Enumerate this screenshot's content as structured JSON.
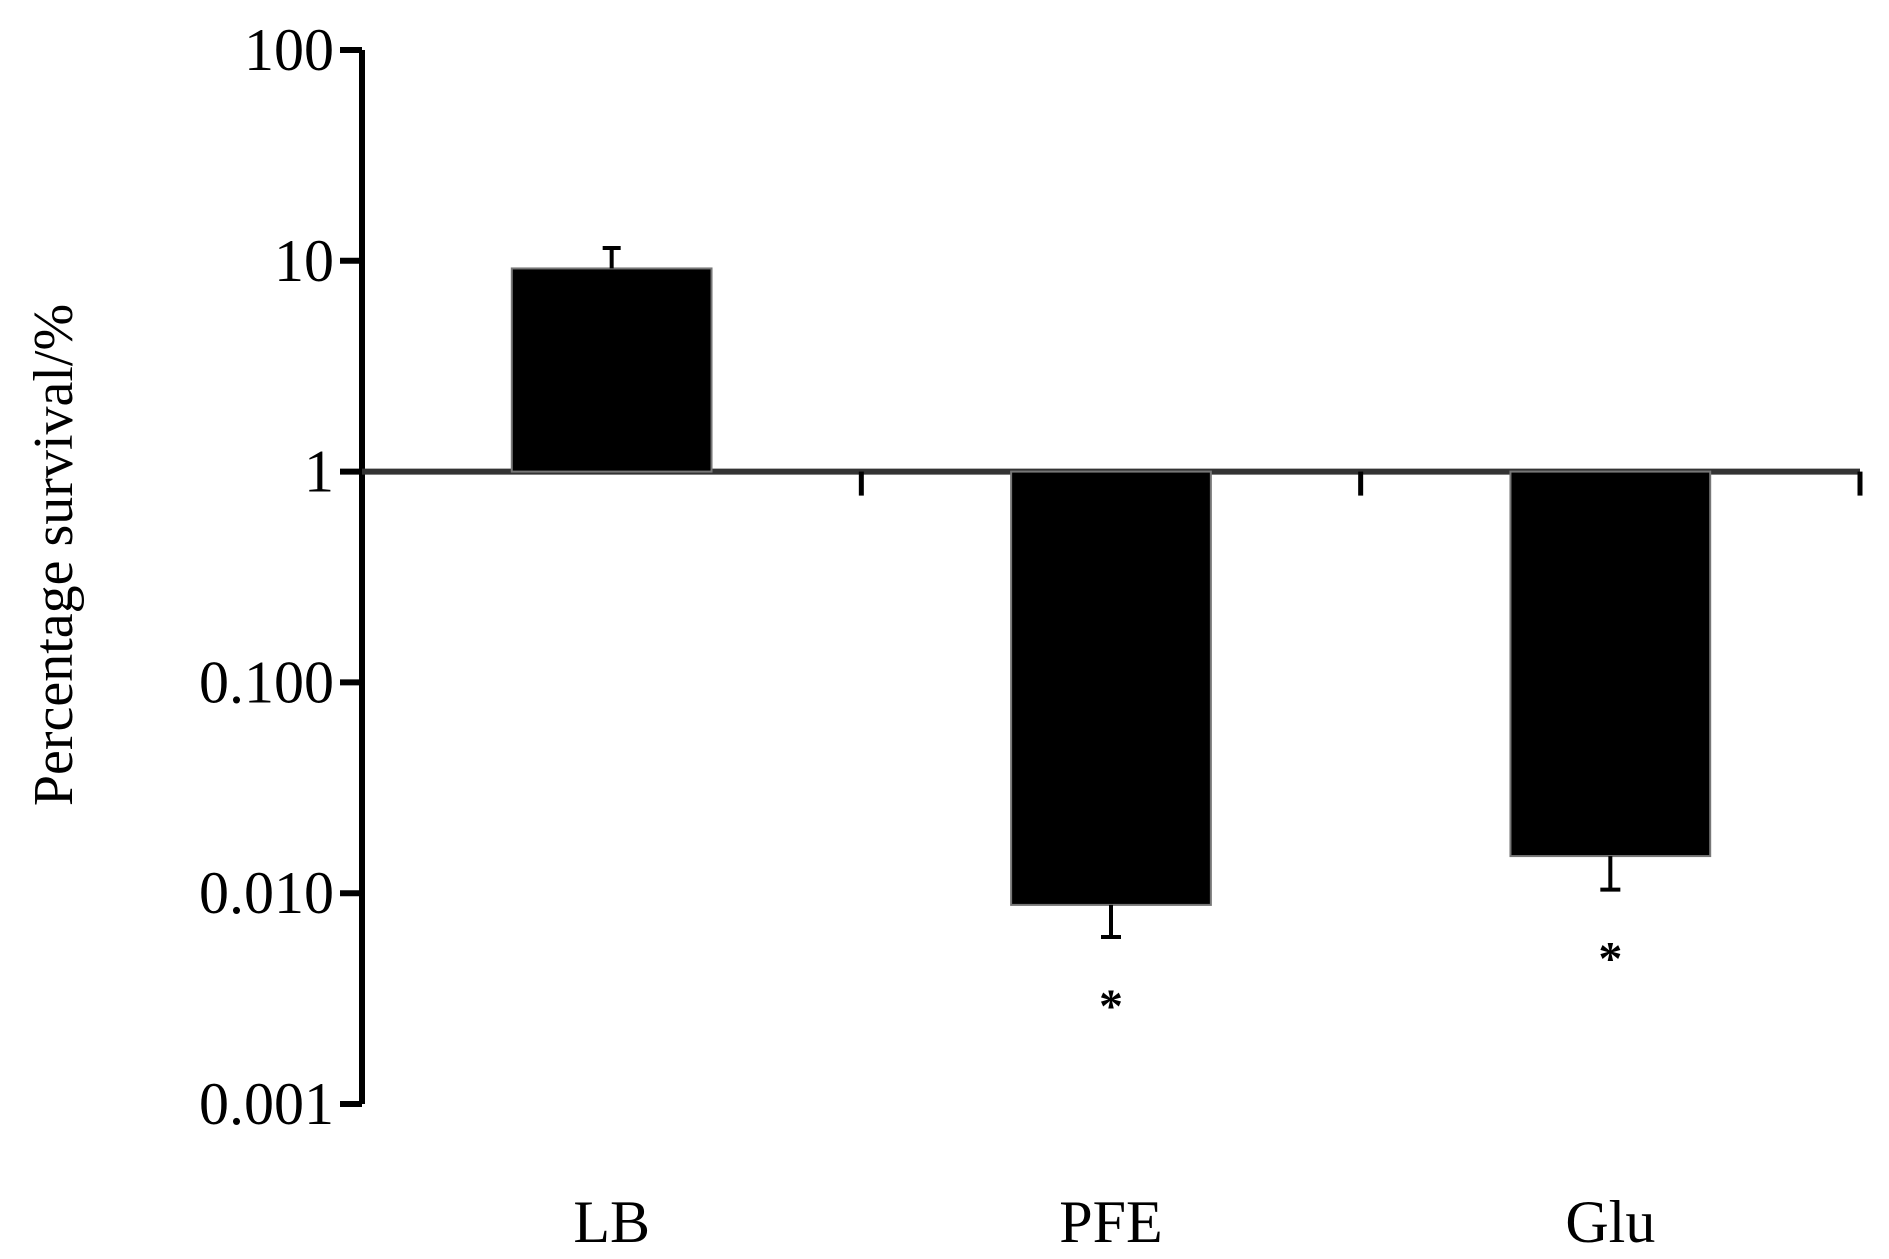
{
  "chart_data": {
    "type": "bar",
    "title": "",
    "xlabel": "",
    "ylabel": "Percentage survival/%",
    "yscale": "log",
    "ylim": [
      0.001,
      100
    ],
    "baseline": 1,
    "grid": false,
    "legend": "none",
    "yticks": [
      {
        "value": 100,
        "label": "100"
      },
      {
        "value": 10,
        "label": "10"
      },
      {
        "value": 1,
        "label": "1"
      },
      {
        "value": 0.1,
        "label": "0.100"
      },
      {
        "value": 0.01,
        "label": "0.010"
      },
      {
        "value": 0.001,
        "label": "0.001"
      }
    ],
    "categories": [
      "LB",
      "PFE",
      "Glu"
    ],
    "values": [
      9.2,
      0.0088,
      0.015
    ],
    "error_low": [
      null,
      0.0062,
      0.0104
    ],
    "error_high": [
      11.5,
      null,
      null
    ],
    "significance": [
      "",
      "*",
      "*"
    ],
    "colors": {
      "bar": "#000000",
      "axis": "#000000"
    }
  }
}
